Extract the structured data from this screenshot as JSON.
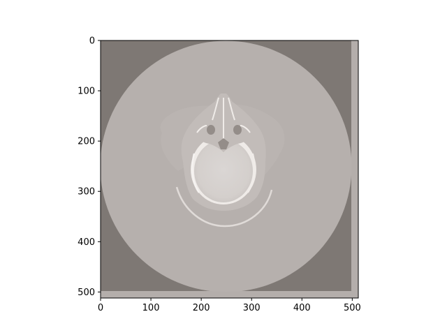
{
  "image": {
    "extent": {
      "x": [
        0,
        512
      ],
      "y": [
        0,
        512
      ]
    },
    "y_inverted": true
  },
  "axes": {
    "x_ticks": [
      {
        "value": 0,
        "label": "0"
      },
      {
        "value": 100,
        "label": "100"
      },
      {
        "value": 200,
        "label": "200"
      },
      {
        "value": 300,
        "label": "300"
      },
      {
        "value": 400,
        "label": "400"
      },
      {
        "value": 500,
        "label": "500"
      }
    ],
    "y_ticks": [
      {
        "value": 0,
        "label": "0"
      },
      {
        "value": 100,
        "label": "100"
      },
      {
        "value": 200,
        "label": "200"
      },
      {
        "value": 300,
        "label": "300"
      },
      {
        "value": 400,
        "label": "400"
      },
      {
        "value": 500,
        "label": "500"
      }
    ]
  },
  "colors": {
    "background": "#7e7874",
    "edge_band": "#b4aeab",
    "fov_disc": "#b6b0ad",
    "soft_tissue": "#c2bcb9",
    "brain": "#d7d2d0",
    "bone": "#efebe8",
    "sinus": "#948d89",
    "head_rest": "#e0dbd8"
  }
}
